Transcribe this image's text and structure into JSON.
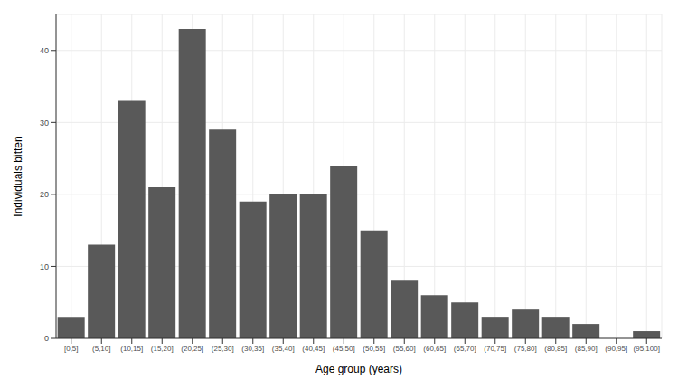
{
  "chart_data": {
    "type": "bar",
    "x_label": "Age group (years)",
    "y_label": "Individuals bitten",
    "categories": [
      "[0,5]",
      "(5,10]",
      "(10,15]",
      "(15,20]",
      "(20,25]",
      "(25,30]",
      "(30,35]",
      "(35,40]",
      "(40,45]",
      "(45,50]",
      "(50,55]",
      "(55,60]",
      "(60,65]",
      "(65,70]",
      "(70,75]",
      "(75,80]",
      "(80,85]",
      "(85,90]",
      "(90,95]",
      "(95,100]"
    ],
    "values": [
      3,
      13,
      33,
      21,
      43,
      29,
      19,
      20,
      20,
      24,
      15,
      8,
      6,
      5,
      3,
      4,
      3,
      2,
      0,
      1
    ],
    "color": "#595959",
    "ylim": [
      0,
      45
    ],
    "yticks": [
      0,
      10,
      20,
      30,
      40
    ],
    "grid": true
  }
}
